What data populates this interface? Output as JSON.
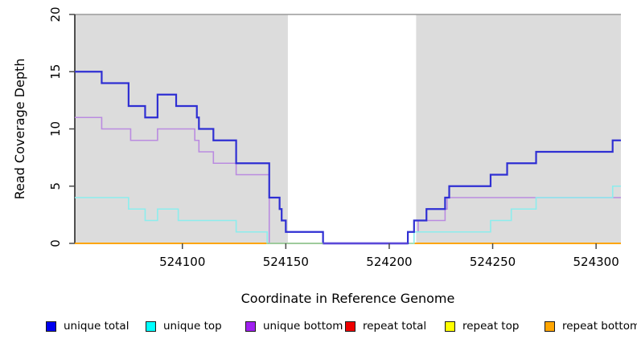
{
  "chart_data": {
    "type": "line",
    "subtype": "step-coverage-plot",
    "title": "",
    "xlabel": "Coordinate in Reference Genome",
    "ylabel": "Read Coverage Depth",
    "xlim": [
      524048,
      524312
    ],
    "ylim": [
      0,
      20
    ],
    "x_ticks": [
      524100,
      524150,
      524200,
      524250,
      524300
    ],
    "y_ticks": [
      0,
      5,
      10,
      15,
      20
    ],
    "grid": false,
    "band_color": "#DCDCDC",
    "axis_color": "#1a1a1a",
    "tick_color": "#4a4a4a",
    "top_border_color": "#9A9A9A",
    "shaded_regions": [
      [
        524048,
        524151
      ],
      [
        524213,
        524312
      ]
    ],
    "series": [
      {
        "name": "repeat total",
        "color": "#EE0000",
        "line_width": 1.6,
        "points": [
          [
            524048,
            0
          ],
          [
            524312,
            0
          ]
        ]
      },
      {
        "name": "repeat top",
        "color": "#FFFF00",
        "line_width": 1.6,
        "points": [
          [
            524048,
            0
          ],
          [
            524312,
            0
          ]
        ]
      },
      {
        "name": "repeat bottom",
        "color": "#FFA500",
        "line_width": 2,
        "points": [
          [
            524048,
            0
          ],
          [
            524312,
            0
          ]
        ]
      },
      {
        "name": "unique bottom",
        "color": "#BA8BE0",
        "line_width": 1.6,
        "points": [
          [
            524048,
            11
          ],
          [
            524061,
            11
          ],
          [
            524061,
            10
          ],
          [
            524075,
            10
          ],
          [
            524075,
            9
          ],
          [
            524088,
            9
          ],
          [
            524088,
            10
          ],
          [
            524106,
            10
          ],
          [
            524106,
            9
          ],
          [
            524108,
            9
          ],
          [
            524108,
            8
          ],
          [
            524115,
            8
          ],
          [
            524115,
            7
          ],
          [
            524126,
            7
          ],
          [
            524126,
            6
          ],
          [
            524142,
            6
          ],
          [
            524142,
            0
          ],
          [
            524209,
            0
          ],
          [
            524209,
            1
          ],
          [
            524214,
            1
          ],
          [
            524214,
            2
          ],
          [
            524227,
            2
          ],
          [
            524227,
            3
          ],
          [
            524228,
            3
          ],
          [
            524228,
            4
          ],
          [
            524312,
            4
          ]
        ]
      },
      {
        "name": "unique top",
        "color": "#8CEDED",
        "line_width": 1.6,
        "points": [
          [
            524048,
            4
          ],
          [
            524074,
            4
          ],
          [
            524074,
            3
          ],
          [
            524082,
            3
          ],
          [
            524082,
            2
          ],
          [
            524088,
            2
          ],
          [
            524088,
            3
          ],
          [
            524098,
            3
          ],
          [
            524098,
            2
          ],
          [
            524126,
            2
          ],
          [
            524126,
            1
          ],
          [
            524141,
            1
          ],
          [
            524141,
            0
          ],
          [
            524212,
            0
          ],
          [
            524212,
            1
          ],
          [
            524249,
            1
          ],
          [
            524249,
            2
          ],
          [
            524259,
            2
          ],
          [
            524259,
            3
          ],
          [
            524271,
            3
          ],
          [
            524271,
            4
          ],
          [
            524308,
            4
          ],
          [
            524308,
            5
          ],
          [
            524312,
            5
          ]
        ]
      },
      {
        "name": "unique total",
        "color": "#2F2FD3",
        "line_width": 2.2,
        "points": [
          [
            524048,
            15
          ],
          [
            524061,
            15
          ],
          [
            524061,
            14
          ],
          [
            524074,
            14
          ],
          [
            524074,
            12
          ],
          [
            524082,
            12
          ],
          [
            524082,
            11
          ],
          [
            524088,
            11
          ],
          [
            524088,
            13
          ],
          [
            524097,
            13
          ],
          [
            524097,
            12
          ],
          [
            524107,
            12
          ],
          [
            524107,
            11
          ],
          [
            524108,
            11
          ],
          [
            524108,
            10
          ],
          [
            524115,
            10
          ],
          [
            524115,
            9
          ],
          [
            524126,
            9
          ],
          [
            524126,
            7
          ],
          [
            524142,
            7
          ],
          [
            524142,
            4
          ],
          [
            524147,
            4
          ],
          [
            524147,
            3
          ],
          [
            524148,
            3
          ],
          [
            524148,
            2
          ],
          [
            524150,
            2
          ],
          [
            524150,
            1
          ],
          [
            524168,
            1
          ],
          [
            524168,
            0
          ],
          [
            524209,
            0
          ],
          [
            524209,
            1
          ],
          [
            524212,
            1
          ],
          [
            524212,
            2
          ],
          [
            524218,
            2
          ],
          [
            524218,
            3
          ],
          [
            524227,
            3
          ],
          [
            524227,
            4
          ],
          [
            524229,
            4
          ],
          [
            524229,
            5
          ],
          [
            524249,
            5
          ],
          [
            524249,
            6
          ],
          [
            524257,
            6
          ],
          [
            524257,
            7
          ],
          [
            524271,
            7
          ],
          [
            524271,
            8
          ],
          [
            524308,
            8
          ],
          [
            524308,
            9
          ],
          [
            524312,
            9
          ]
        ]
      }
    ],
    "baseline_overlays": [
      {
        "from": 524141,
        "to": 524168,
        "color": "#96CE96",
        "line_width": 1.6
      },
      {
        "from": 524168,
        "to": 524209,
        "color": "#5A48D8",
        "line_width": 2.4
      }
    ]
  },
  "legend": {
    "items": [
      {
        "label": "unique total",
        "color": "#0000EE"
      },
      {
        "label": "unique top",
        "color": "#00FFFF"
      },
      {
        "label": "unique bottom",
        "color": "#A020F0"
      },
      {
        "label": "repeat total",
        "color": "#EE0000"
      },
      {
        "label": "repeat top",
        "color": "#FFFF00"
      },
      {
        "label": "repeat bottom",
        "color": "#FFA500"
      }
    ]
  }
}
